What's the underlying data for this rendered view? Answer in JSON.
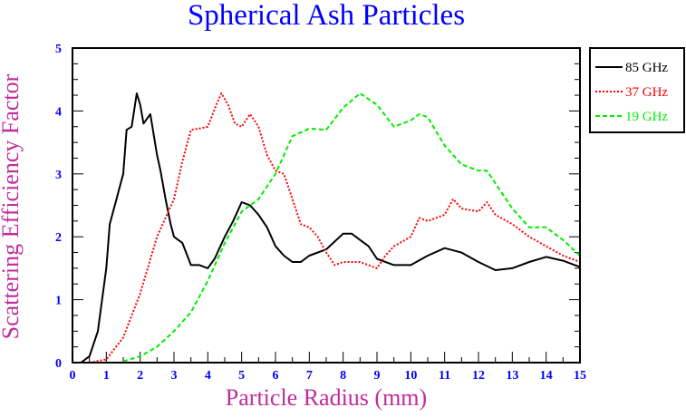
{
  "chart_data": {
    "type": "line",
    "title": "Spherical Ash Particles",
    "xlabel": "Particle Radius (mm)",
    "ylabel": "Scattering Efficiency Factor",
    "xlim": [
      0,
      15
    ],
    "ylim": [
      0,
      5
    ],
    "xticks": [
      0,
      1,
      2,
      3,
      4,
      5,
      6,
      7,
      8,
      9,
      10,
      11,
      12,
      13,
      14,
      15
    ],
    "yticks": [
      0,
      1,
      2,
      3,
      4,
      5
    ],
    "grid": false,
    "legend_position": "right-top",
    "colors": {
      "title": "#0000ff",
      "axis_label": "#c02c9c",
      "tick_label": "#0000ff"
    },
    "series": [
      {
        "name": "85 GHz",
        "color": "#000000",
        "style": "solid",
        "x": [
          0,
          0.25,
          0.5,
          0.75,
          1.0,
          1.1,
          1.25,
          1.5,
          1.6,
          1.75,
          1.9,
          2.0,
          2.1,
          2.3,
          2.5,
          2.6,
          2.75,
          2.9,
          3.0,
          3.25,
          3.5,
          3.75,
          4.0,
          4.2,
          4.5,
          4.75,
          5.0,
          5.25,
          5.5,
          5.75,
          6.0,
          6.25,
          6.5,
          6.75,
          7.0,
          7.5,
          8.0,
          8.25,
          8.5,
          8.75,
          9.0,
          9.5,
          10.0,
          10.5,
          11.0,
          11.5,
          12.0,
          12.5,
          13.0,
          13.5,
          14.0,
          14.5,
          15.0
        ],
        "y": [
          0,
          0,
          0.1,
          0.5,
          1.5,
          2.2,
          2.5,
          3.0,
          3.7,
          3.75,
          4.28,
          4.1,
          3.8,
          3.95,
          3.3,
          3.05,
          2.6,
          2.2,
          2.0,
          1.9,
          1.55,
          1.55,
          1.5,
          1.65,
          2.0,
          2.25,
          2.55,
          2.5,
          2.35,
          2.15,
          1.85,
          1.7,
          1.6,
          1.6,
          1.7,
          1.8,
          2.05,
          2.05,
          1.95,
          1.85,
          1.65,
          1.55,
          1.55,
          1.7,
          1.82,
          1.75,
          1.6,
          1.47,
          1.5,
          1.6,
          1.68,
          1.62,
          1.52
        ]
      },
      {
        "name": "37 GHz",
        "color": "#ff0000",
        "style": "dotted",
        "x": [
          0.5,
          1.0,
          1.5,
          2.0,
          2.5,
          3.0,
          3.25,
          3.5,
          3.75,
          4.0,
          4.25,
          4.4,
          4.6,
          4.8,
          5.0,
          5.25,
          5.5,
          5.75,
          6.0,
          6.25,
          6.5,
          6.75,
          7.0,
          7.25,
          7.5,
          7.75,
          8.0,
          8.5,
          9.0,
          9.25,
          9.5,
          10.0,
          10.25,
          10.5,
          11.0,
          11.25,
          11.5,
          12.0,
          12.25,
          12.5,
          13.0,
          13.5,
          14.0,
          14.5,
          15.0
        ],
        "y": [
          0,
          0.05,
          0.4,
          1.1,
          2.0,
          2.6,
          3.2,
          3.7,
          3.72,
          3.75,
          4.1,
          4.28,
          4.1,
          3.8,
          3.75,
          3.95,
          3.75,
          3.3,
          3.05,
          3.0,
          2.6,
          2.2,
          2.15,
          2.0,
          1.75,
          1.55,
          1.6,
          1.6,
          1.5,
          1.7,
          1.85,
          2.0,
          2.3,
          2.25,
          2.35,
          2.6,
          2.45,
          2.4,
          2.55,
          2.35,
          2.2,
          2.0,
          1.85,
          1.7,
          1.6
        ]
      },
      {
        "name": "19 GHz",
        "color": "#00ee00",
        "style": "dashed",
        "x": [
          1.5,
          2.0,
          2.5,
          3.0,
          3.5,
          4.0,
          4.5,
          5.0,
          5.5,
          6.0,
          6.5,
          7.0,
          7.5,
          8.0,
          8.5,
          9.0,
          9.5,
          10.0,
          10.25,
          10.5,
          11.0,
          11.5,
          12.0,
          12.25,
          12.5,
          13.0,
          13.5,
          13.75,
          14.0,
          14.5,
          15.0
        ],
        "y": [
          0.02,
          0.1,
          0.25,
          0.5,
          0.8,
          1.3,
          1.9,
          2.4,
          2.6,
          3.0,
          3.6,
          3.72,
          3.7,
          4.05,
          4.28,
          4.1,
          3.75,
          3.85,
          3.95,
          3.9,
          3.45,
          3.15,
          3.05,
          3.05,
          2.85,
          2.45,
          2.15,
          2.15,
          2.15,
          1.95,
          1.7
        ]
      }
    ]
  }
}
